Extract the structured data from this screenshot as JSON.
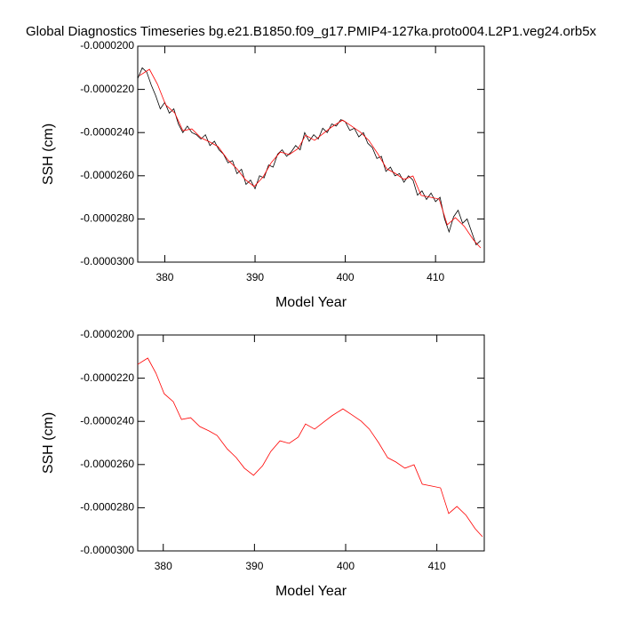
{
  "chart_data": [
    {
      "type": "line",
      "title": "Global Diagnostics Timeseries bg.e21.B1850.f09_g17.PMIP4-127ka.proto004.L2P1.veg24.orb5x",
      "xlabel": "Model Year",
      "ylabel": "SSH (cm)",
      "xlim": [
        377.0,
        415.4
      ],
      "xticks": [
        380,
        390,
        400,
        410
      ],
      "ylim": [
        -3e-05,
        -2e-05
      ],
      "yticks": [
        {
          "value": -3e-05,
          "label": "-0.0000300"
        },
        {
          "value": -2.8e-05,
          "label": "-0.0000280"
        },
        {
          "value": -2.6e-05,
          "label": "-0.0000260"
        },
        {
          "value": -2.4e-05,
          "label": "-0.0000240"
        },
        {
          "value": -2.2e-05,
          "label": "-0.0000220"
        },
        {
          "value": -2e-05,
          "label": "-0.0000200"
        }
      ],
      "series": [
        {
          "color": "#000000",
          "x": [
            377.0,
            377.5,
            378.0,
            378.5,
            379.0,
            379.5,
            380.0,
            380.5,
            381.0,
            381.5,
            382.0,
            382.5,
            383.0,
            383.5,
            384.0,
            384.5,
            385.0,
            385.5,
            386.0,
            386.5,
            387.0,
            387.5,
            388.0,
            388.5,
            389.0,
            389.5,
            390.0,
            390.5,
            391.0,
            391.5,
            392.0,
            392.5,
            393.0,
            393.5,
            394.0,
            394.5,
            395.0,
            395.5,
            396.0,
            396.5,
            397.0,
            397.5,
            398.0,
            398.5,
            399.0,
            399.5,
            400.0,
            400.5,
            401.0,
            401.5,
            402.0,
            402.5,
            403.0,
            403.5,
            404.0,
            404.5,
            405.0,
            405.5,
            406.0,
            406.5,
            407.0,
            407.5,
            408.0,
            408.5,
            409.0,
            409.5,
            410.0,
            410.5,
            411.0,
            411.5,
            412.0,
            412.5,
            413.0,
            413.5,
            414.0,
            414.5,
            415.0
          ],
          "values": [
            -2.15e-05,
            -2.1e-05,
            -2.12e-05,
            -2.18e-05,
            -2.23e-05,
            -2.29e-05,
            -2.26e-05,
            -2.31e-05,
            -2.29e-05,
            -2.36e-05,
            -2.4e-05,
            -2.37e-05,
            -2.4e-05,
            -2.41e-05,
            -2.43e-05,
            -2.41e-05,
            -2.46e-05,
            -2.44e-05,
            -2.48e-05,
            -2.5e-05,
            -2.54e-05,
            -2.53e-05,
            -2.59e-05,
            -2.57e-05,
            -2.64e-05,
            -2.62e-05,
            -2.66e-05,
            -2.6e-05,
            -2.61e-05,
            -2.55e-05,
            -2.56e-05,
            -2.5e-05,
            -2.48e-05,
            -2.51e-05,
            -2.49e-05,
            -2.46e-05,
            -2.48e-05,
            -2.4e-05,
            -2.44e-05,
            -2.41e-05,
            -2.43e-05,
            -2.38e-05,
            -2.4e-05,
            -2.36e-05,
            -2.37e-05,
            -2.34e-05,
            -2.35e-05,
            -2.39e-05,
            -2.38e-05,
            -2.42e-05,
            -2.4e-05,
            -2.45e-05,
            -2.47e-05,
            -2.52e-05,
            -2.51e-05,
            -2.58e-05,
            -2.56e-05,
            -2.6e-05,
            -2.59e-05,
            -2.63e-05,
            -2.6e-05,
            -2.62e-05,
            -2.69e-05,
            -2.67e-05,
            -2.71e-05,
            -2.68e-05,
            -2.72e-05,
            -2.7e-05,
            -2.8e-05,
            -2.86e-05,
            -2.79e-05,
            -2.76e-05,
            -2.82e-05,
            -2.8e-05,
            -2.86e-05,
            -2.92e-05,
            -2.9e-05
          ]
        },
        {
          "color": "#ff0000",
          "x": [
            377.2,
            378.3,
            379.2,
            380.1,
            381.1,
            382.0,
            383.0,
            384.0,
            385.0,
            385.9,
            387.0,
            388.0,
            388.9,
            389.9,
            390.9,
            391.8,
            392.8,
            393.8,
            394.8,
            395.6,
            396.6,
            397.6,
            398.5,
            399.7,
            400.7,
            401.7,
            402.6,
            403.6,
            404.6,
            405.5,
            406.5,
            407.5,
            408.4,
            409.5,
            410.4,
            411.3,
            412.2,
            413.2,
            414.2,
            415.0
          ],
          "values": [
            -2.136e-05,
            -2.107e-05,
            -2.177e-05,
            -2.272e-05,
            -2.309e-05,
            -2.391e-05,
            -2.383e-05,
            -2.424e-05,
            -2.444e-05,
            -2.465e-05,
            -2.527e-05,
            -2.568e-05,
            -2.617e-05,
            -2.65e-05,
            -2.605e-05,
            -2.539e-05,
            -2.49e-05,
            -2.502e-05,
            -2.473e-05,
            -2.412e-05,
            -2.436e-05,
            -2.403e-05,
            -2.374e-05,
            -2.342e-05,
            -2.37e-05,
            -2.399e-05,
            -2.436e-05,
            -2.498e-05,
            -2.568e-05,
            -2.588e-05,
            -2.617e-05,
            -2.601e-05,
            -2.691e-05,
            -2.7e-05,
            -2.708e-05,
            -2.827e-05,
            -2.794e-05,
            -2.835e-05,
            -2.897e-05,
            -2.934e-05
          ]
        }
      ]
    },
    {
      "type": "line",
      "xlabel": "Model Year",
      "ylabel": "SSH (cm)",
      "xlim": [
        377.2,
        415.2
      ],
      "xticks": [
        380,
        390,
        400,
        410
      ],
      "ylim": [
        -3e-05,
        -2e-05
      ],
      "yticks": [
        {
          "value": -3e-05,
          "label": "-0.0000300"
        },
        {
          "value": -2.8e-05,
          "label": "-0.0000280"
        },
        {
          "value": -2.6e-05,
          "label": "-0.0000260"
        },
        {
          "value": -2.4e-05,
          "label": "-0.0000240"
        },
        {
          "value": -2.2e-05,
          "label": "-0.0000220"
        },
        {
          "value": -2e-05,
          "label": "-0.0000200"
        }
      ],
      "series": [
        {
          "color": "#ff0000",
          "x": [
            377.2,
            378.3,
            379.2,
            380.1,
            381.1,
            382.0,
            383.0,
            384.0,
            385.0,
            385.9,
            387.0,
            388.0,
            388.9,
            389.9,
            390.9,
            391.8,
            392.8,
            393.8,
            394.8,
            395.6,
            396.6,
            397.6,
            398.5,
            399.7,
            400.7,
            401.7,
            402.6,
            403.6,
            404.6,
            405.5,
            406.5,
            407.5,
            408.4,
            409.5,
            410.4,
            411.3,
            412.2,
            413.2,
            414.2,
            415.0
          ],
          "values": [
            -2.136e-05,
            -2.107e-05,
            -2.177e-05,
            -2.272e-05,
            -2.309e-05,
            -2.391e-05,
            -2.383e-05,
            -2.424e-05,
            -2.444e-05,
            -2.465e-05,
            -2.527e-05,
            -2.568e-05,
            -2.617e-05,
            -2.65e-05,
            -2.605e-05,
            -2.539e-05,
            -2.49e-05,
            -2.502e-05,
            -2.473e-05,
            -2.412e-05,
            -2.436e-05,
            -2.403e-05,
            -2.374e-05,
            -2.342e-05,
            -2.37e-05,
            -2.399e-05,
            -2.436e-05,
            -2.498e-05,
            -2.568e-05,
            -2.588e-05,
            -2.617e-05,
            -2.601e-05,
            -2.691e-05,
            -2.7e-05,
            -2.708e-05,
            -2.827e-05,
            -2.794e-05,
            -2.835e-05,
            -2.897e-05,
            -2.934e-05
          ]
        }
      ]
    }
  ]
}
